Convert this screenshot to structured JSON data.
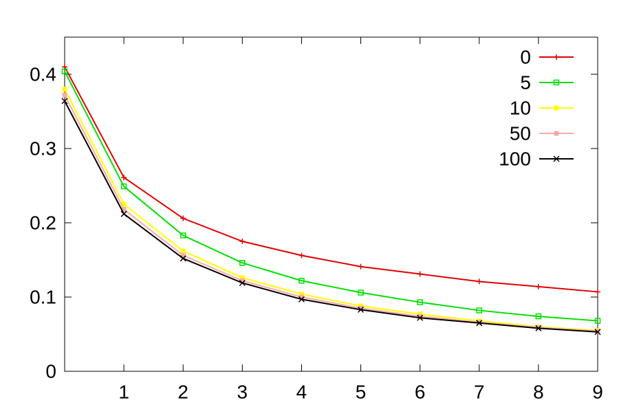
{
  "chart_data": {
    "type": "line",
    "x": [
      0,
      1,
      2,
      3,
      4,
      5,
      6,
      7,
      8,
      9
    ],
    "series": [
      {
        "name": "0",
        "color": "#e00000",
        "marker": "plus",
        "values": [
          0.41,
          0.261,
          0.206,
          0.175,
          0.156,
          0.141,
          0.131,
          0.121,
          0.114,
          0.107
        ]
      },
      {
        "name": "5",
        "color": "#00e000",
        "marker": "open-square",
        "values": [
          0.404,
          0.249,
          0.183,
          0.146,
          0.122,
          0.106,
          0.093,
          0.082,
          0.074,
          0.068
        ]
      },
      {
        "name": "10",
        "color": "#ffff00",
        "marker": "filled-square",
        "values": [
          0.38,
          0.225,
          0.162,
          0.126,
          0.104,
          0.088,
          0.077,
          0.068,
          0.06,
          0.055
        ]
      },
      {
        "name": "50",
        "color": "#ffa8a8",
        "marker": "filled-square",
        "values": [
          0.372,
          0.218,
          0.156,
          0.122,
          0.1,
          0.085,
          0.074,
          0.066,
          0.059,
          0.054
        ]
      },
      {
        "name": "100",
        "color": "#000000",
        "marker": "cross",
        "values": [
          0.364,
          0.212,
          0.152,
          0.119,
          0.097,
          0.083,
          0.072,
          0.065,
          0.058,
          0.053
        ]
      }
    ],
    "xlim": [
      0,
      9
    ],
    "xticks": [
      1,
      2,
      3,
      4,
      5,
      6,
      7,
      8,
      9
    ],
    "ylim": [
      0,
      0.45
    ],
    "yticks": [
      0,
      0.1,
      0.2,
      0.3,
      0.4
    ],
    "grid": false,
    "legend": "top-right"
  }
}
